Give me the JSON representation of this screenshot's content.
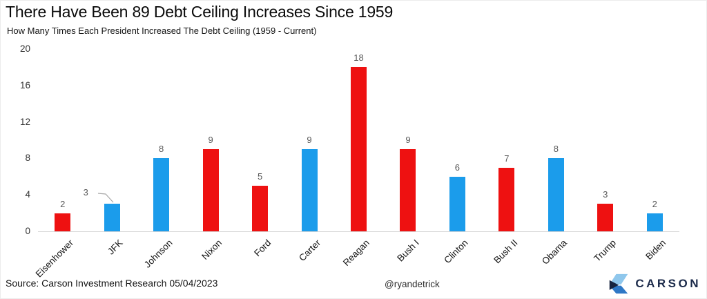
{
  "header": {
    "title": "There Have Been 89 Debt Ceiling Increases Since 1959",
    "subtitle": "How Many Times Each President Increased The Debt Ceiling (1959 - Current)"
  },
  "chart_data": {
    "type": "bar",
    "title": "There Have Been 89 Debt Ceiling Increases Since 1959",
    "subtitle": "How Many Times Each President Increased The Debt Ceiling (1959 - Current)",
    "categories": [
      "Eisenhower",
      "JFK",
      "Johnson",
      "Nixon",
      "Ford",
      "Carter",
      "Reagan",
      "Bush I",
      "Clinton",
      "Bush II",
      "Obama",
      "Trump",
      "Biden"
    ],
    "values": [
      2,
      3,
      8,
      9,
      5,
      9,
      18,
      9,
      6,
      7,
      8,
      3,
      2
    ],
    "bar_colors": [
      "red",
      "blue",
      "blue",
      "red",
      "red",
      "blue",
      "red",
      "red",
      "blue",
      "red",
      "blue",
      "red",
      "blue"
    ],
    "palette": {
      "red": "#ee1111",
      "blue": "#1b9ceb"
    },
    "xlabel": "",
    "ylabel": "",
    "ylim": [
      0,
      20
    ],
    "yticks": [
      0,
      4,
      8,
      12,
      16,
      20
    ],
    "grid": false,
    "legend": false,
    "value_labels": true,
    "callout_index": 1,
    "value_label_color": "#595959",
    "axis_line_color": "#d6d6d6"
  },
  "footer": {
    "source": "Source: Carson Investment Research 05/04/2023",
    "handle": "@ryandetrick",
    "logo_text": "CARSON",
    "logo_colors": {
      "light_blue": "#8fc7ec",
      "mid_blue": "#2e78c6",
      "navy": "#17243f",
      "text": "#1b2a4a"
    }
  }
}
